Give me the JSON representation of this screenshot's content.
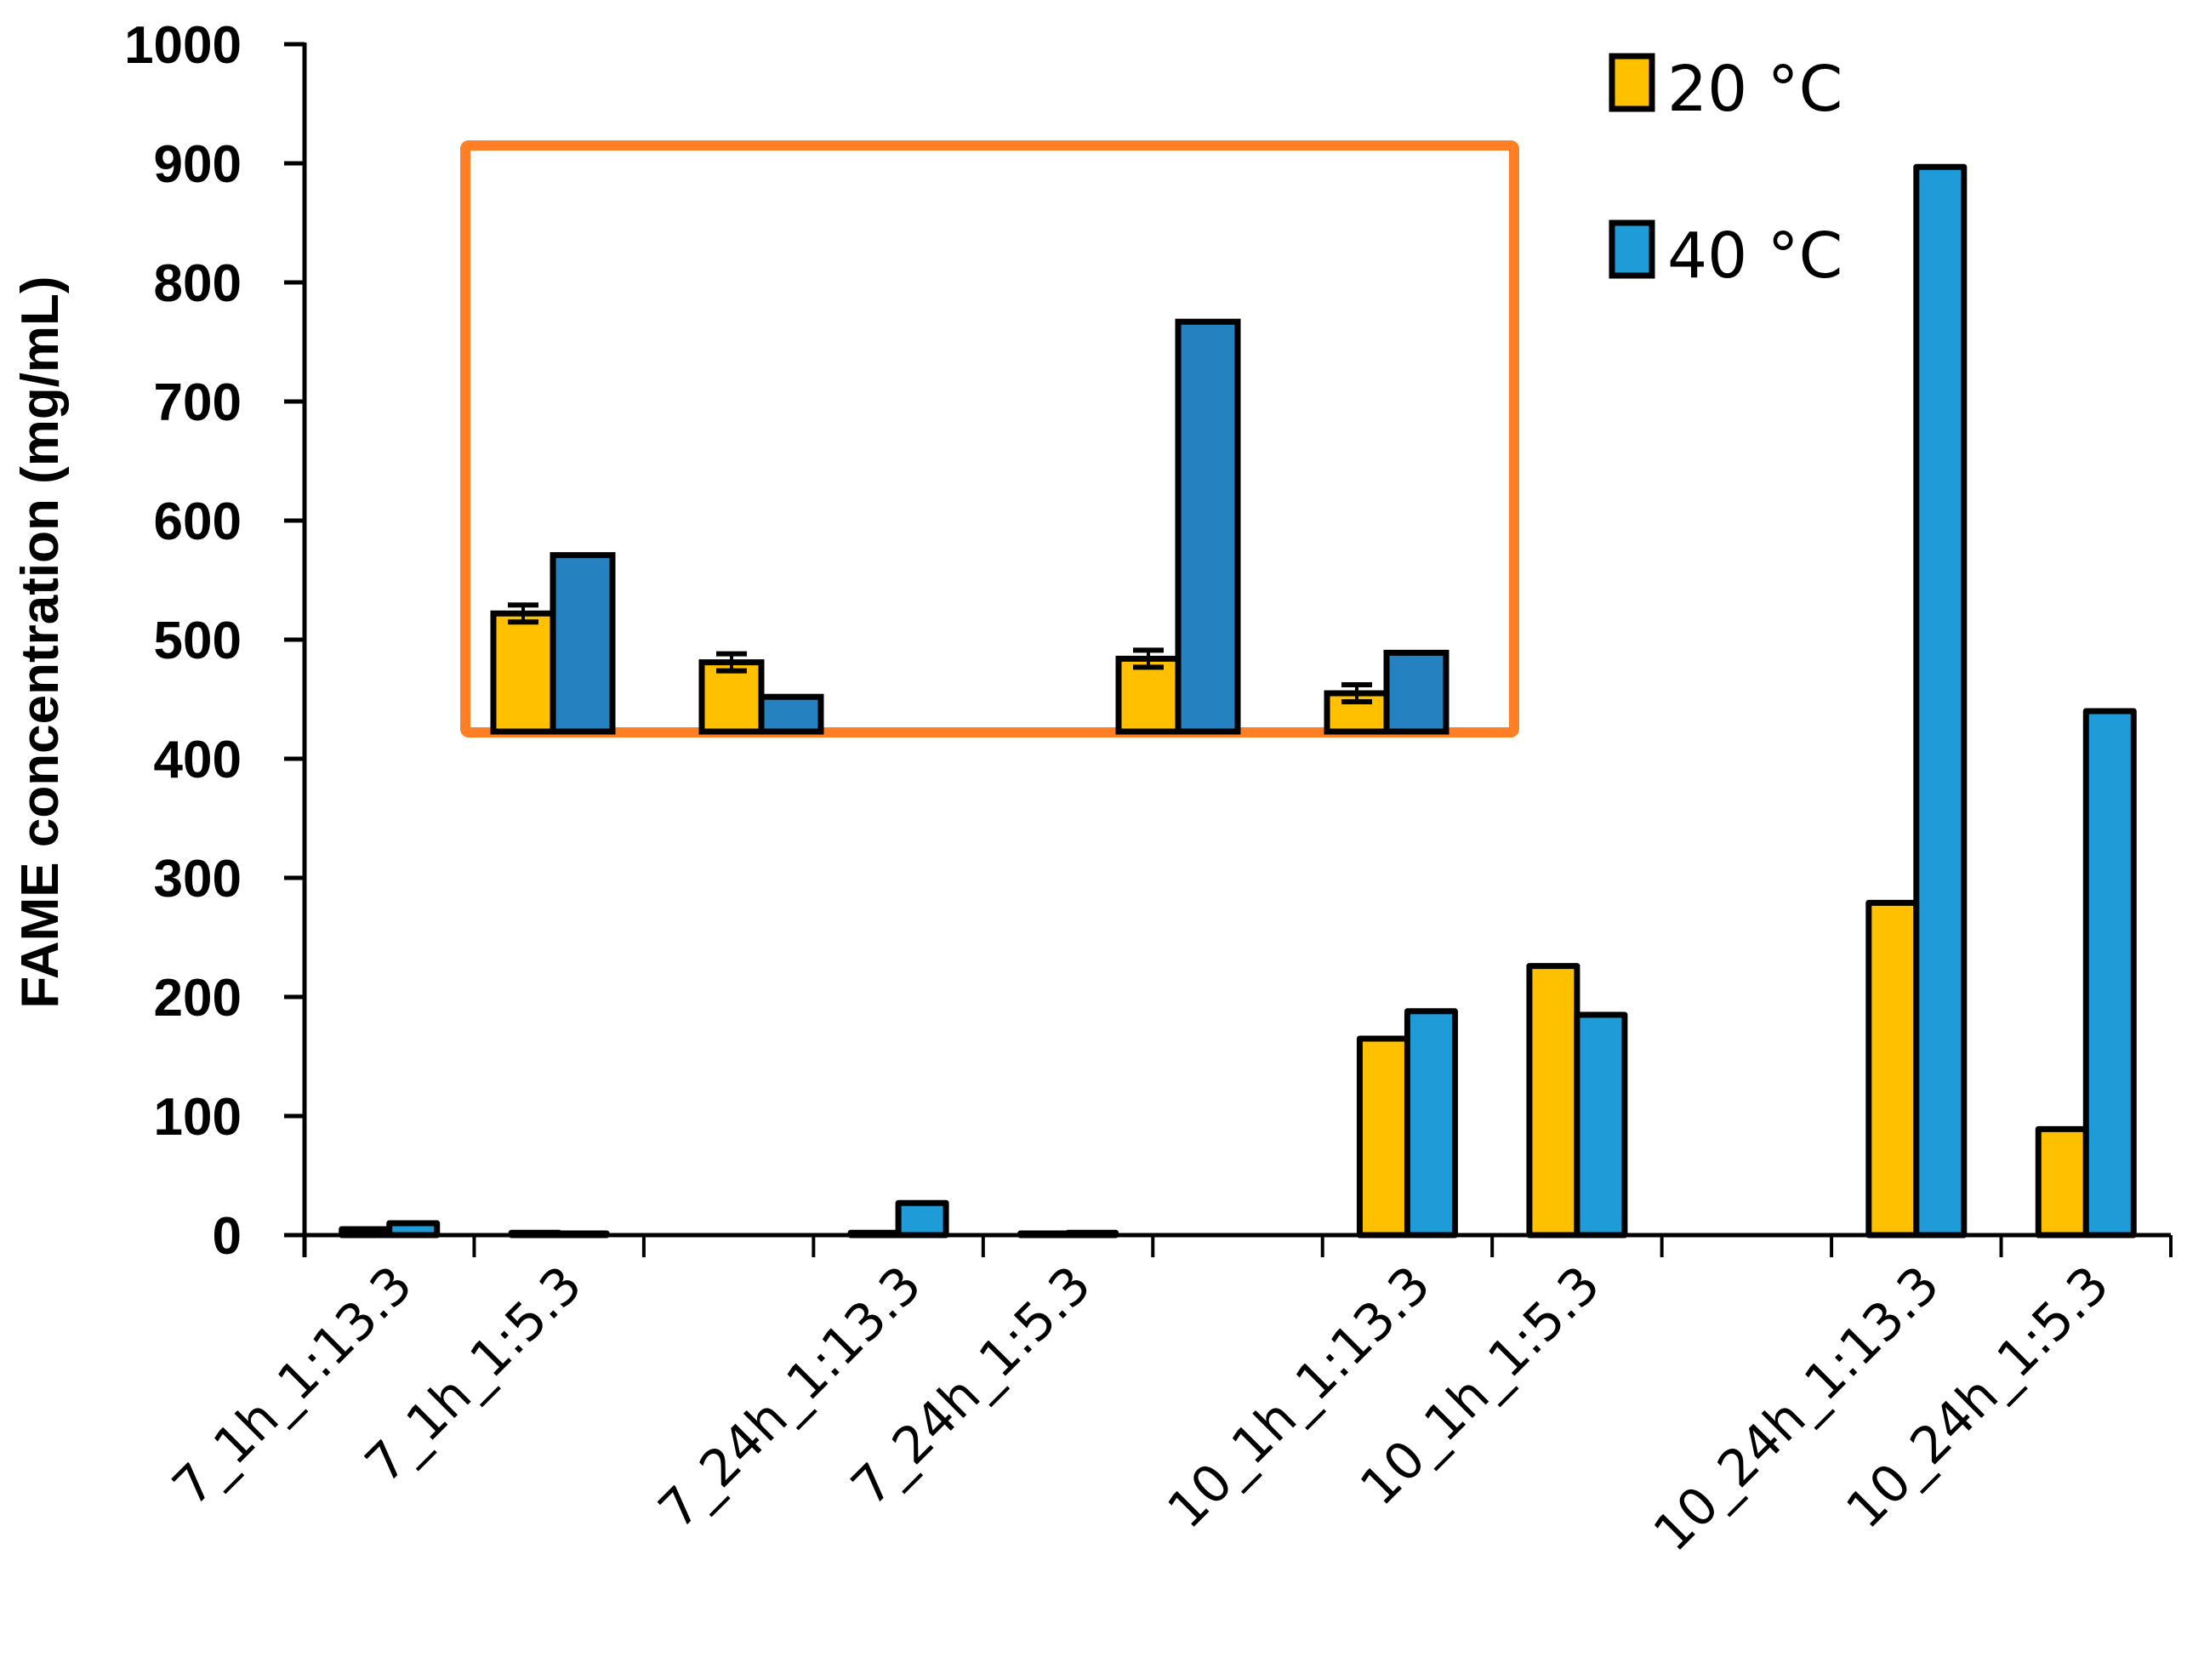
{
  "chart_data": {
    "type": "bar",
    "title": "",
    "xlabel": "",
    "ylabel": "FAME concentration (mg/mL)",
    "ylim": [
      0,
      1000
    ],
    "yticks": [
      0,
      100,
      200,
      300,
      400,
      500,
      600,
      700,
      800,
      900,
      1000
    ],
    "grid": false,
    "legend_position": "top-right",
    "categories": [
      "7_1h_1:13.3",
      "7_1h_1:5.3",
      "",
      "7_24h_1:13.3",
      "7_24h_1:5.3",
      "",
      "10_1h_1:13.3",
      "10_1h_1:5.3",
      "",
      "10_24h_1:13.3",
      "10_24h_1:5.3"
    ],
    "series": [
      {
        "name": "20 °C",
        "color": "#FFC000",
        "values": [
          5,
          2,
          null,
          2,
          1,
          null,
          165,
          226,
          null,
          279,
          89
        ]
      },
      {
        "name": "40 °C",
        "color": "#1F9BD7",
        "values": [
          10,
          1,
          null,
          27,
          2,
          null,
          188,
          185,
          null,
          897,
          440
        ]
      }
    ],
    "inset": {
      "description": "Magnified view of the 7_* groups (near-zero values)",
      "border_color": "#FF7F27",
      "bar_color_40": "#2581C0",
      "groups": [
        "7_1h_1:13.3",
        "7_1h_1:5.3",
        "7_24h_1:13.3",
        "7_24h_1:5.3"
      ],
      "relative_heights_20": [
        522,
        481,
        484,
        455
      ],
      "relative_heights_40": [
        571,
        452,
        767,
        489
      ]
    }
  },
  "legend": {
    "items": [
      {
        "label": "20 °C",
        "color": "#FFC000"
      },
      {
        "label": "40 °C",
        "color": "#1F9BD7"
      }
    ]
  }
}
